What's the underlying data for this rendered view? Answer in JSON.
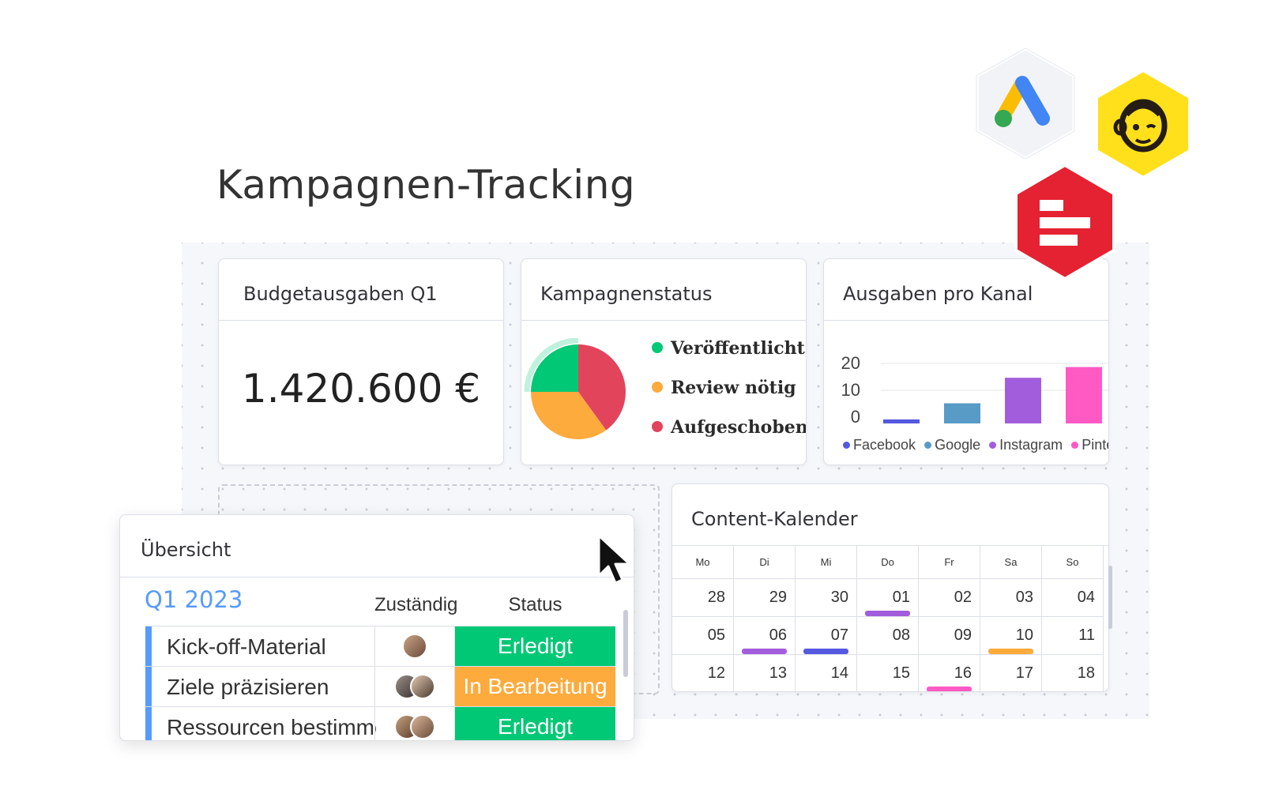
{
  "page": {
    "title": "Kampagnen-Tracking"
  },
  "widgets": {
    "budget": {
      "title": "Budgetausgaben Q1",
      "value": "1.420.600 €"
    },
    "status": {
      "title": "Kampagnenstatus",
      "legend": [
        {
          "label": "Veröffentlicht",
          "color": "#00c875"
        },
        {
          "label": "Review nötig",
          "color": "#fdab3d"
        },
        {
          "label": "Aufgeschoben",
          "color": "#e2445c"
        }
      ]
    },
    "channels": {
      "title": "Ausgaben pro Kanal",
      "legend": [
        {
          "label": "Facebook",
          "color": "#5559df"
        },
        {
          "label": "Google",
          "color": "#579bc6"
        },
        {
          "label": "Instagram",
          "color": "#a25ddc"
        },
        {
          "label": "Pinterest",
          "color": "#ff5ac4"
        }
      ]
    },
    "calendar": {
      "title": "Content-Kalender",
      "weekdays": [
        "Mo",
        "Di",
        "Mi",
        "Do",
        "Fr",
        "Sa",
        "So"
      ],
      "weeks": [
        [
          "28",
          "29",
          "30",
          "01",
          "02",
          "03",
          "04"
        ],
        [
          "05",
          "06",
          "07",
          "08",
          "09",
          "10",
          "11"
        ],
        [
          "12",
          "13",
          "14",
          "15",
          "16",
          "17",
          "18"
        ]
      ]
    }
  },
  "chart_data": [
    {
      "type": "pie",
      "labels": [
        "Veröffentlicht",
        "Review nötig",
        "Aufgeschoben"
      ],
      "values": [
        25,
        35,
        40
      ],
      "colors": [
        "#00c875",
        "#fdab3d",
        "#e2445c"
      ]
    },
    {
      "type": "bar",
      "categories": [
        "Facebook",
        "Google",
        "Instagram",
        "Pinterest"
      ],
      "values": [
        1.5,
        7.5,
        17,
        21
      ],
      "colors": [
        "#5559df",
        "#579bc6",
        "#a25ddc",
        "#ff5ac4"
      ],
      "yticks": [
        "20",
        "10",
        "0"
      ],
      "ylim": [
        0,
        20
      ],
      "grid": true
    }
  ],
  "overview": {
    "title": "Übersicht",
    "group": "Q1 2023",
    "columns": {
      "owner": "Zuständig",
      "status": "Status"
    },
    "rows": [
      {
        "name": "Kick-off-Material",
        "status": "Erledigt",
        "status_color": "#00c875"
      },
      {
        "name": "Ziele präzisieren",
        "status": "In Bearbeitung",
        "status_color": "#fdab3d"
      },
      {
        "name": "Ressourcen bestimmen",
        "status": "Erledigt",
        "status_color": "#00c875"
      }
    ]
  },
  "integrations": [
    {
      "name": "google-ads-icon"
    },
    {
      "name": "mailchimp-icon"
    },
    {
      "name": "red-app-icon"
    }
  ]
}
